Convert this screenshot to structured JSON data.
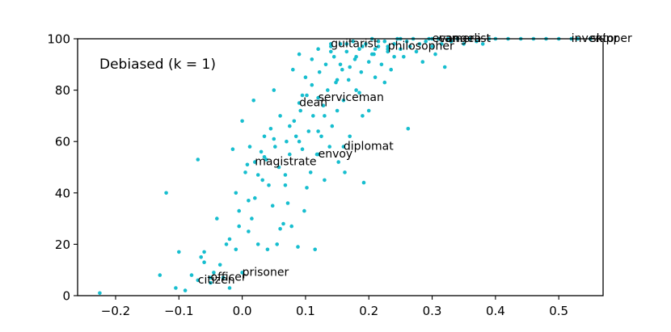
{
  "chart_data": {
    "type": "scatter",
    "annotation": "Debiased (k = 1)",
    "xlim": [
      -0.26,
      0.57
    ],
    "ylim": [
      0,
      100
    ],
    "x_ticks": [
      -0.2,
      -0.1,
      0.0,
      0.1,
      0.2,
      0.3,
      0.4,
      0.5
    ],
    "x_tick_labels": [
      "−0.2",
      "−0.1",
      "0.0",
      "0.1",
      "0.2",
      "0.3",
      "0.4",
      "0.5"
    ],
    "y_ticks": [
      0,
      20,
      40,
      60,
      80,
      100
    ],
    "y_tick_labels": [
      "0",
      "20",
      "40",
      "60",
      "80",
      "100"
    ],
    "grid": false,
    "marker_color": "#17BECF",
    "labeled_points": [
      {
        "label": "guitarist",
        "x": 0.14,
        "y": 98
      },
      {
        "label": "philosopher",
        "x": 0.23,
        "y": 97
      },
      {
        "label": "evangelist",
        "x": 0.3,
        "y": 100
      },
      {
        "label": "camera",
        "x": 0.31,
        "y": 100
      },
      {
        "label": "inventor",
        "x": 0.52,
        "y": 100
      },
      {
        "label": "skipper",
        "x": 0.55,
        "y": 100
      },
      {
        "label": "serviceman",
        "x": 0.12,
        "y": 77
      },
      {
        "label": "dean",
        "x": 0.09,
        "y": 75
      },
      {
        "label": "diplomat",
        "x": 0.16,
        "y": 58
      },
      {
        "label": "envoy",
        "x": 0.12,
        "y": 55
      },
      {
        "label": "magistrate",
        "x": 0.02,
        "y": 52
      },
      {
        "label": "prisoner",
        "x": 0.0,
        "y": 9
      },
      {
        "label": "officer",
        "x": -0.05,
        "y": 7
      },
      {
        "label": "citizen",
        "x": -0.07,
        "y": 6
      }
    ],
    "points": [
      [
        -0.225,
        1
      ],
      [
        -0.13,
        8
      ],
      [
        -0.12,
        40
      ],
      [
        -0.105,
        3
      ],
      [
        -0.1,
        17
      ],
      [
        -0.09,
        2
      ],
      [
        -0.08,
        8
      ],
      [
        -0.07,
        53
      ],
      [
        -0.065,
        15
      ],
      [
        -0.06,
        17
      ],
      [
        -0.05,
        5
      ],
      [
        -0.04,
        30
      ],
      [
        -0.035,
        12
      ],
      [
        -0.03,
        7
      ],
      [
        -0.025,
        20
      ],
      [
        -0.02,
        3
      ],
      [
        -0.015,
        57
      ],
      [
        -0.01,
        40
      ],
      [
        -0.005,
        33
      ],
      [
        0.0,
        68
      ],
      [
        0.005,
        48
      ],
      [
        0.008,
        51
      ],
      [
        0.01,
        25
      ],
      [
        0.012,
        58
      ],
      [
        0.018,
        76
      ],
      [
        0.02,
        38
      ],
      [
        0.025,
        20
      ],
      [
        0.03,
        56
      ],
      [
        0.032,
        45
      ],
      [
        0.035,
        62
      ],
      [
        0.038,
        53
      ],
      [
        0.04,
        18
      ],
      [
        0.042,
        43
      ],
      [
        0.045,
        65
      ],
      [
        0.048,
        35
      ],
      [
        0.05,
        80
      ],
      [
        0.052,
        58
      ],
      [
        0.055,
        20
      ],
      [
        0.058,
        50
      ],
      [
        0.06,
        70
      ],
      [
        0.065,
        28
      ],
      [
        0.068,
        43
      ],
      [
        0.07,
        60
      ],
      [
        0.072,
        36
      ],
      [
        0.075,
        55
      ],
      [
        0.078,
        27
      ],
      [
        0.08,
        88
      ],
      [
        0.082,
        68
      ],
      [
        0.085,
        62
      ],
      [
        0.088,
        19
      ],
      [
        0.09,
        94
      ],
      [
        0.092,
        72
      ],
      [
        0.095,
        57
      ],
      [
        0.098,
        33
      ],
      [
        0.1,
        85
      ],
      [
        0.102,
        78
      ],
      [
        0.105,
        64
      ],
      [
        0.108,
        48
      ],
      [
        0.11,
        92
      ],
      [
        0.112,
        70
      ],
      [
        0.115,
        18
      ],
      [
        0.118,
        55
      ],
      [
        0.12,
        96
      ],
      [
        0.122,
        87
      ],
      [
        0.125,
        62
      ],
      [
        0.128,
        74
      ],
      [
        0.13,
        45
      ],
      [
        0.132,
        90
      ],
      [
        0.135,
        80
      ],
      [
        0.138,
        58
      ],
      [
        0.14,
        97
      ],
      [
        0.142,
        66
      ],
      [
        0.145,
        93
      ],
      [
        0.148,
        83
      ],
      [
        0.15,
        72
      ],
      [
        0.152,
        52
      ],
      [
        0.155,
        98
      ],
      [
        0.158,
        88
      ],
      [
        0.16,
        76
      ],
      [
        0.162,
        48
      ],
      [
        0.165,
        95
      ],
      [
        0.168,
        84
      ],
      [
        0.17,
        62
      ],
      [
        0.175,
        99
      ],
      [
        0.178,
        92
      ],
      [
        0.18,
        80
      ],
      [
        0.185,
        96
      ],
      [
        0.188,
        87
      ],
      [
        0.19,
        70
      ],
      [
        0.192,
        44
      ],
      [
        0.195,
        98
      ],
      [
        0.2,
        91
      ],
      [
        0.205,
        100
      ],
      [
        0.208,
        94
      ],
      [
        0.21,
        85
      ],
      [
        0.215,
        97
      ],
      [
        0.22,
        90
      ],
      [
        0.225,
        99
      ],
      [
        0.23,
        95
      ],
      [
        0.235,
        88
      ],
      [
        0.24,
        98
      ],
      [
        0.245,
        100
      ],
      [
        0.25,
        96
      ],
      [
        0.255,
        93
      ],
      [
        0.26,
        99
      ],
      [
        0.262,
        65
      ],
      [
        0.265,
        97
      ],
      [
        0.27,
        100
      ],
      [
        0.275,
        95
      ],
      [
        0.28,
        98
      ],
      [
        0.285,
        91
      ],
      [
        0.29,
        99
      ],
      [
        0.295,
        100
      ],
      [
        0.3,
        97
      ],
      [
        0.305,
        94
      ],
      [
        0.31,
        100
      ],
      [
        0.315,
        98
      ],
      [
        0.32,
        89
      ],
      [
        0.325,
        100
      ],
      [
        0.33,
        99
      ],
      [
        0.34,
        100
      ],
      [
        0.35,
        98
      ],
      [
        0.36,
        100
      ],
      [
        0.37,
        99
      ],
      [
        0.38,
        98
      ],
      [
        0.39,
        100
      ],
      [
        0.4,
        100
      ],
      [
        0.42,
        100
      ],
      [
        0.44,
        100
      ],
      [
        0.46,
        100
      ],
      [
        0.48,
        100
      ],
      [
        0.5,
        100
      ],
      [
        0.53,
        100
      ],
      [
        0.55,
        100
      ],
      [
        -0.06,
        13
      ],
      [
        -0.045,
        9
      ],
      [
        -0.01,
        18
      ],
      [
        0.015,
        30
      ],
      [
        0.06,
        26
      ],
      [
        0.068,
        47
      ],
      [
        0.09,
        60
      ],
      [
        0.102,
        42
      ],
      [
        0.13,
        70
      ],
      [
        0.15,
        84
      ],
      [
        0.17,
        89
      ],
      [
        0.185,
        79
      ],
      [
        0.2,
        72
      ],
      [
        0.21,
        96
      ],
      [
        0.225,
        83
      ],
      [
        0.14,
        95
      ],
      [
        0.155,
        90
      ],
      [
        0.165,
        98
      ],
      [
        0.18,
        93
      ],
      [
        0.19,
        97
      ],
      [
        0.205,
        94
      ],
      [
        0.215,
        99
      ],
      [
        0.23,
        96
      ],
      [
        0.24,
        93
      ],
      [
        0.25,
        100
      ],
      [
        0.12,
        64
      ],
      [
        0.11,
        82
      ],
      [
        0.095,
        78
      ],
      [
        0.075,
        66
      ],
      [
        0.05,
        61
      ],
      [
        0.035,
        54
      ],
      [
        0.025,
        47
      ],
      [
        0.01,
        37
      ],
      [
        -0.005,
        27
      ],
      [
        -0.02,
        22
      ]
    ]
  }
}
